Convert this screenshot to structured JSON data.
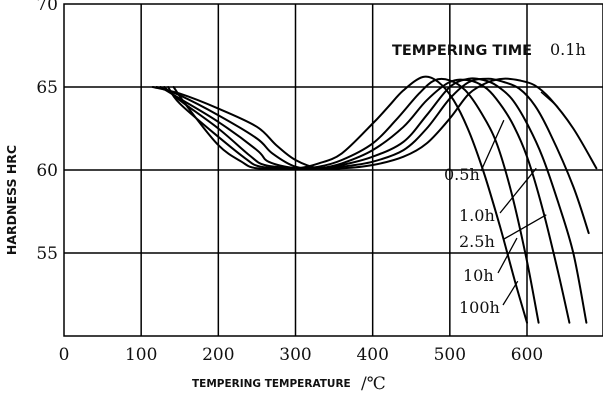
{
  "chart_data": {
    "type": "line",
    "title": "",
    "xlabel": "TEMPERING TEMPERATURE",
    "xunit": "/℃",
    "ylabel": "HARDNESS HRC",
    "xlim": [
      0,
      690
    ],
    "ylim": [
      50,
      70
    ],
    "xticks": [
      "0",
      "100",
      "200",
      "300",
      "400",
      "500",
      "600"
    ],
    "xtick_values": [
      0,
      100,
      200,
      300,
      400,
      500,
      600
    ],
    "yticks": [
      "70",
      "65",
      "60",
      "55"
    ],
    "ytick_values": [
      70,
      65,
      60,
      55
    ],
    "grid": true,
    "legend_title": "TEMPERING TIME",
    "series": [
      {
        "name": "0.1h",
        "x": [
          115,
          150,
          200,
          250,
          275,
          300,
          330,
          360,
          400,
          440,
          470,
          500,
          525,
          550,
          570,
          590,
          610,
          630,
          660,
          690
        ],
        "y": [
          65.0,
          64.6,
          63.7,
          62.6,
          61.5,
          60.6,
          60.1,
          60.1,
          60.3,
          60.8,
          61.6,
          63.1,
          64.6,
          65.3,
          65.5,
          65.4,
          65.1,
          64.3,
          62.5,
          60.1
        ]
      },
      {
        "name": "0.5h",
        "x": [
          120,
          150,
          200,
          250,
          270,
          300,
          330,
          360,
          400,
          440,
          470,
          500,
          525,
          550,
          570,
          590,
          610,
          630,
          660,
          680
        ],
        "y": [
          65.0,
          64.5,
          63.3,
          61.9,
          61.0,
          60.2,
          60.1,
          60.2,
          60.5,
          61.2,
          62.5,
          64.3,
          65.3,
          65.5,
          65.3,
          64.9,
          63.9,
          62.2,
          59.0,
          56.2
        ]
      },
      {
        "name": "1.0h",
        "x": [
          125,
          150,
          200,
          250,
          265,
          300,
          330,
          360,
          400,
          440,
          470,
          500,
          525,
          545,
          560,
          580,
          600,
          620,
          640,
          660,
          677
        ],
        "y": [
          65.0,
          64.3,
          62.9,
          61.2,
          60.5,
          60.1,
          60.1,
          60.3,
          60.8,
          61.7,
          63.3,
          65.0,
          65.5,
          65.4,
          65.1,
          64.3,
          62.8,
          60.8,
          58.1,
          55.0,
          50.8
        ]
      },
      {
        "name": "2.5h",
        "x": [
          130,
          150,
          200,
          240,
          260,
          300,
          330,
          360,
          400,
          440,
          470,
          500,
          525,
          545,
          560,
          580,
          600,
          620,
          640,
          655
        ],
        "y": [
          65.0,
          64.2,
          62.5,
          60.9,
          60.3,
          60.1,
          60.1,
          60.4,
          61.2,
          62.6,
          64.2,
          65.3,
          65.4,
          65.0,
          64.3,
          62.9,
          60.8,
          57.7,
          53.9,
          50.8
        ]
      },
      {
        "name": "10h",
        "x": [
          135,
          150,
          200,
          235,
          255,
          300,
          330,
          360,
          400,
          430,
          460,
          480,
          500,
          520,
          540,
          560,
          580,
          600,
          615
        ],
        "y": [
          65.0,
          64.0,
          62.0,
          60.7,
          60.2,
          60.1,
          60.2,
          60.6,
          61.6,
          63.0,
          64.6,
          65.4,
          65.4,
          64.8,
          63.5,
          61.7,
          58.6,
          54.5,
          50.8
        ]
      },
      {
        "name": "100h",
        "x": [
          142,
          160,
          200,
          230,
          250,
          300,
          330,
          360,
          400,
          420,
          440,
          465,
          485,
          505,
          525,
          545,
          565,
          585,
          600
        ],
        "y": [
          65.0,
          63.8,
          61.5,
          60.5,
          60.1,
          60.1,
          60.4,
          61.0,
          62.8,
          63.8,
          64.8,
          65.6,
          65.3,
          64.2,
          62.3,
          59.7,
          56.6,
          53.2,
          50.8
        ]
      }
    ],
    "labels": [
      {
        "text": "0.1h",
        "anchor": [
          640,
          63.8
        ]
      },
      {
        "text": "0.5h",
        "anchor": [
          570,
          63.0
        ]
      },
      {
        "text": "1.0h",
        "anchor": [
          612,
          60.1
        ]
      },
      {
        "text": "2.5h",
        "anchor": [
          625,
          57.3
        ]
      },
      {
        "text": "10h",
        "anchor": [
          587,
          55.9
        ]
      },
      {
        "text": "100h",
        "anchor": [
          588,
          53.3
        ]
      }
    ]
  }
}
